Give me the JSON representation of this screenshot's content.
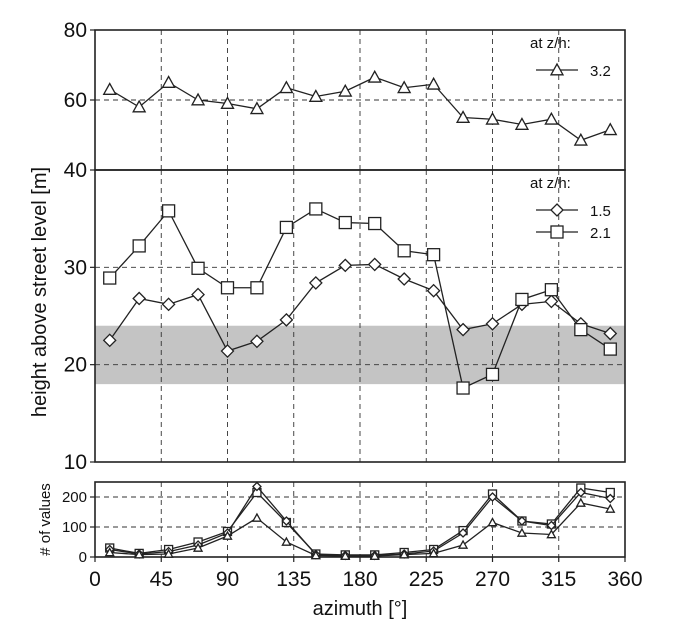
{
  "chart_data": [
    {
      "type": "line",
      "panel": "top",
      "ylim": [
        40,
        80
      ],
      "yticks": [
        40,
        60,
        80
      ],
      "xlim": [
        0,
        360
      ],
      "grid": true,
      "legend_title": "at z/h:",
      "legend_position": "top-right",
      "series": [
        {
          "name": "3.2",
          "marker": "triangle",
          "x": [
            10,
            30,
            50,
            70,
            90,
            110,
            130,
            150,
            170,
            190,
            210,
            230,
            250,
            270,
            290,
            310,
            330,
            350
          ],
          "y": [
            63,
            58,
            65,
            60,
            59,
            57.5,
            63.5,
            61,
            62.5,
            66.5,
            63.5,
            64.5,
            55,
            54.5,
            53,
            54.5,
            48.5,
            51.5
          ]
        }
      ]
    },
    {
      "type": "line",
      "panel": "middle",
      "ylabel": "height above street level [m]",
      "ylim": [
        10,
        40
      ],
      "yticks": [
        10,
        20,
        30,
        40
      ],
      "xlim": [
        0,
        360
      ],
      "grid": true,
      "shaded_band": [
        18,
        24
      ],
      "legend_title": "at z/h:",
      "legend_position": "top-right",
      "series": [
        {
          "name": "1.5",
          "marker": "diamond",
          "x": [
            10,
            30,
            50,
            70,
            90,
            110,
            130,
            150,
            170,
            190,
            210,
            230,
            250,
            270,
            290,
            310,
            330,
            350
          ],
          "y": [
            22.5,
            26.8,
            26.2,
            27.2,
            21.4,
            22.4,
            24.6,
            28.4,
            30.2,
            30.3,
            28.8,
            27.6,
            23.6,
            24.2,
            26.2,
            26.5,
            24.2,
            23.2
          ]
        },
        {
          "name": "2.1",
          "marker": "square",
          "x": [
            10,
            30,
            50,
            70,
            90,
            110,
            130,
            150,
            170,
            190,
            210,
            230,
            250,
            270,
            290,
            310,
            330,
            350
          ],
          "y": [
            28.9,
            32.2,
            35.8,
            29.9,
            27.9,
            27.9,
            34.1,
            36.0,
            34.6,
            34.5,
            31.7,
            31.3,
            17.6,
            19.0,
            26.7,
            27.7,
            23.6,
            21.6
          ]
        }
      ]
    },
    {
      "type": "line",
      "panel": "bottom",
      "ylabel": "# of values",
      "xlabel": "azimuth [°]",
      "ylim": [
        0,
        250
      ],
      "yticks": [
        0,
        100,
        200
      ],
      "xlim": [
        0,
        360
      ],
      "xticks": [
        0,
        45,
        90,
        135,
        180,
        225,
        270,
        315,
        360
      ],
      "grid": true,
      "series": [
        {
          "marker": "square",
          "x": [
            10,
            30,
            50,
            70,
            90,
            110,
            130,
            150,
            170,
            190,
            210,
            230,
            250,
            270,
            290,
            310,
            330,
            350
          ],
          "y": [
            30,
            12,
            25,
            50,
            85,
            215,
            115,
            10,
            7,
            7,
            15,
            25,
            88,
            210,
            120,
            110,
            230,
            215
          ]
        },
        {
          "marker": "diamond",
          "x": [
            10,
            30,
            50,
            70,
            90,
            110,
            130,
            150,
            170,
            190,
            210,
            230,
            250,
            270,
            290,
            310,
            330,
            350
          ],
          "y": [
            25,
            10,
            18,
            40,
            80,
            235,
            120,
            8,
            5,
            5,
            10,
            20,
            80,
            200,
            120,
            105,
            215,
            195
          ]
        },
        {
          "marker": "triangle",
          "x": [
            10,
            30,
            50,
            70,
            90,
            110,
            130,
            150,
            170,
            190,
            210,
            230,
            250,
            270,
            290,
            310,
            330,
            350
          ],
          "y": [
            15,
            8,
            10,
            30,
            70,
            130,
            50,
            5,
            3,
            3,
            8,
            12,
            40,
            115,
            80,
            75,
            180,
            160
          ]
        }
      ]
    }
  ]
}
